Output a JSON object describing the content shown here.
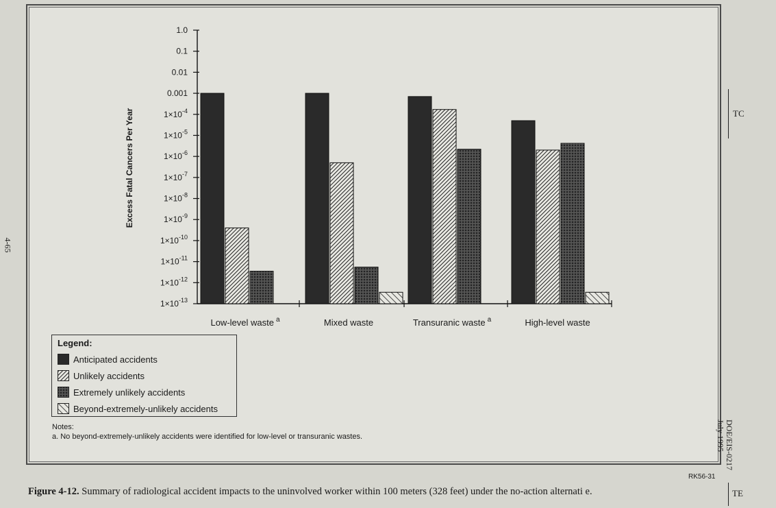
{
  "chart_data": {
    "type": "bar",
    "scale": "log",
    "ylabel": "Excess Fatal Cancers Per Year",
    "ylim": [
      1e-13,
      1
    ],
    "yticks": [
      {
        "value": 1,
        "base": "1.0",
        "sup": ""
      },
      {
        "value": 0.1,
        "base": "0.1",
        "sup": ""
      },
      {
        "value": 0.01,
        "base": "0.01",
        "sup": ""
      },
      {
        "value": 0.001,
        "base": "0.001",
        "sup": ""
      },
      {
        "value": 0.0001,
        "base": "1×10",
        "sup": "-4"
      },
      {
        "value": 1e-05,
        "base": "1×10",
        "sup": "-5"
      },
      {
        "value": 1e-06,
        "base": "1×10",
        "sup": "-6"
      },
      {
        "value": 1e-07,
        "base": "1×10",
        "sup": "-7"
      },
      {
        "value": 1e-08,
        "base": "1×10",
        "sup": "-8"
      },
      {
        "value": 1e-09,
        "base": "1×10",
        "sup": "-9"
      },
      {
        "value": 1e-10,
        "base": "1×10",
        "sup": "-10"
      },
      {
        "value": 1e-11,
        "base": "1×10",
        "sup": "-11"
      },
      {
        "value": 1e-12,
        "base": "1×10",
        "sup": "-12"
      },
      {
        "value": 1e-13,
        "base": "1×10",
        "sup": "-13"
      }
    ],
    "categories": [
      {
        "name": "Low-level waste",
        "sup": "a"
      },
      {
        "name": "Mixed waste",
        "sup": ""
      },
      {
        "name": "Transuranic waste",
        "sup": "a"
      },
      {
        "name": "High-level waste",
        "sup": ""
      }
    ],
    "series": [
      {
        "name": "Anticipated accidents",
        "pattern": "solid",
        "values": [
          0.001,
          0.001,
          0.0007,
          5e-05
        ]
      },
      {
        "name": "Unlikely accidents",
        "pattern": "diag-dense",
        "values": [
          4e-10,
          5e-07,
          0.00017,
          2e-06
        ]
      },
      {
        "name": "Extremely unlikely accidents",
        "pattern": "crosshatch",
        "values": [
          3.5e-12,
          5.5e-12,
          2.2e-06,
          4.2e-06
        ]
      },
      {
        "name": "Beyond-extremely-unlikely accidents",
        "pattern": "diag-sparse",
        "values": [
          null,
          3.5e-13,
          null,
          3.5e-13
        ]
      }
    ]
  },
  "legend": {
    "title": "Legend:"
  },
  "notes": {
    "heading": "Notes:",
    "items": [
      "a.  No beyond-extremely-unlikely accidents were identified for low-level or transuranic wastes."
    ]
  },
  "ref_id": "RK56-31",
  "caption": {
    "figure_number": "Figure 4-12.",
    "text": " Summary of radiological accident impacts to the uninvolved worker within 100 meters (328 feet) under the no-action alternati e."
  },
  "margin": {
    "page_number": "4-65",
    "tc_mark": "TC",
    "te_mark": "TE",
    "doc_id_line1": "DOE/EIS-0217",
    "doc_id_line2": "July 1995"
  },
  "colors": {
    "solid": "#2a2a2a",
    "hatch": "#222222",
    "background": "#e2e2dc"
  }
}
